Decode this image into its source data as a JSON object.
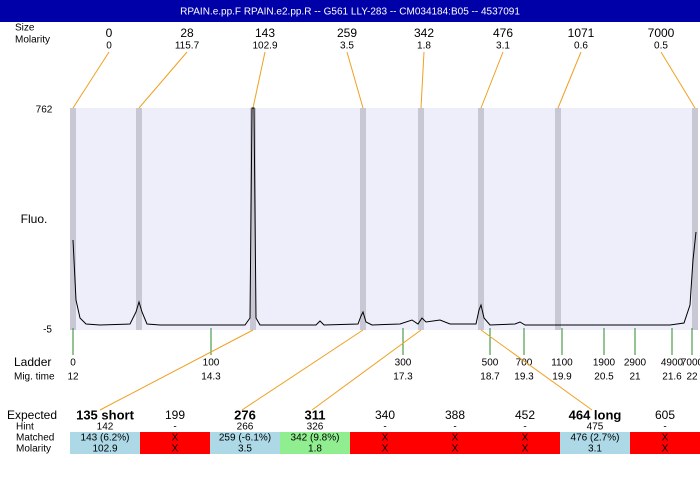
{
  "header": {
    "title": "RPAIN.e.pp.F  RPAIN.e2.pp.R -- G561 LLY-283 -- CM034184:B05 -- 4537091"
  },
  "peaks": {
    "size_label": "Size",
    "molarity_label": "Molarity",
    "items": [
      {
        "size": "0",
        "molarity": "0"
      },
      {
        "size": "28",
        "molarity": "115.7"
      },
      {
        "size": "143",
        "molarity": "102.9"
      },
      {
        "size": "259",
        "molarity": "3.5"
      },
      {
        "size": "342",
        "molarity": "1.8"
      },
      {
        "size": "476",
        "molarity": "3.1"
      },
      {
        "size": "1071",
        "molarity": "0.6"
      },
      {
        "size": "7000",
        "molarity": "0.5"
      }
    ]
  },
  "axis": {
    "top": "762",
    "bottom": "-5",
    "label": "Fluo."
  },
  "ladder": {
    "label": "Ladder",
    "time_label": "Mig. time",
    "items": [
      {
        "size": "0",
        "time": "12"
      },
      {
        "size": "100",
        "time": "14.3"
      },
      {
        "size": "300",
        "time": "17.3"
      },
      {
        "size": "500",
        "time": "18.7"
      },
      {
        "size": "700",
        "time": "19.3"
      },
      {
        "size": "1100",
        "time": "19.9"
      },
      {
        "size": "1900",
        "time": "20.5"
      },
      {
        "size": "2900",
        "time": "21"
      },
      {
        "size": "4900",
        "time": "21.6"
      },
      {
        "size": "7000",
        "time": "22"
      }
    ]
  },
  "table": {
    "row_labels": [
      "Expected",
      "Hint",
      "Matched",
      "Molarity"
    ],
    "columns": [
      {
        "expected": "135 short",
        "bold": true,
        "hint": "142",
        "matched": "143 (6.2%)",
        "molarity": "102.9",
        "color": "#add8e6"
      },
      {
        "expected": "199",
        "bold": false,
        "hint": "-",
        "matched": "X",
        "molarity": "X",
        "color": "#ff0000"
      },
      {
        "expected": "276",
        "bold": true,
        "hint": "266",
        "matched": "259 (-6.1%)",
        "molarity": "3.5",
        "color": "#add8e6"
      },
      {
        "expected": "311",
        "bold": true,
        "hint": "326",
        "matched": "342 (9.8%)",
        "molarity": "1.8",
        "color": "#90ee90"
      },
      {
        "expected": "340",
        "bold": false,
        "hint": "-",
        "matched": "X",
        "molarity": "X",
        "color": "#ff0000"
      },
      {
        "expected": "388",
        "bold": false,
        "hint": "-",
        "matched": "X",
        "molarity": "X",
        "color": "#ff0000"
      },
      {
        "expected": "452",
        "bold": false,
        "hint": "-",
        "matched": "X",
        "molarity": "X",
        "color": "#ff0000"
      },
      {
        "expected": "464 long",
        "bold": true,
        "hint": "475",
        "matched": "476 (2.7%)",
        "molarity": "3.1",
        "color": "#add8e6"
      },
      {
        "expected": "605",
        "bold": false,
        "hint": "-",
        "matched": "X",
        "molarity": "X",
        "color": "#ff0000"
      }
    ]
  }
}
